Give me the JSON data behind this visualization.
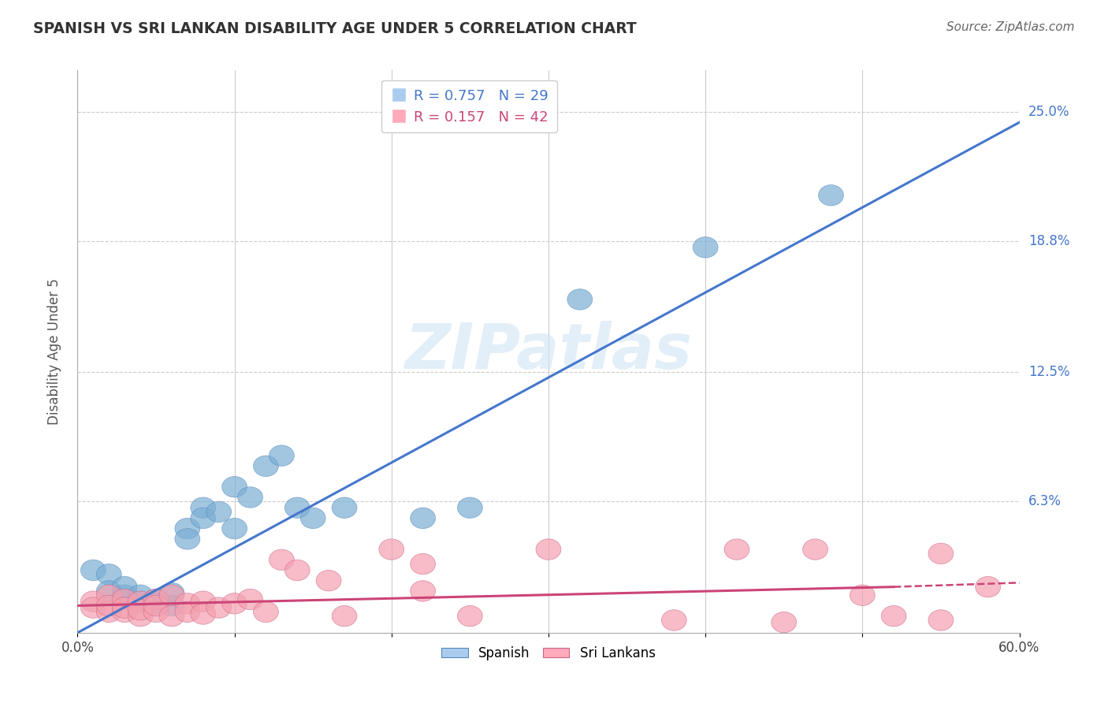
{
  "title": "SPANISH VS SRI LANKAN DISABILITY AGE UNDER 5 CORRELATION CHART",
  "source": "Source: ZipAtlas.com",
  "ylabel": "Disability Age Under 5",
  "xlim": [
    0.0,
    0.6
  ],
  "ylim": [
    0.0,
    0.27
  ],
  "xtick_vals": [
    0.0,
    0.1,
    0.2,
    0.3,
    0.4,
    0.5,
    0.6
  ],
  "xticklabels": [
    "0.0%",
    "",
    "",
    "",
    "",
    "",
    "60.0%"
  ],
  "ytick_vals": [
    0.0,
    0.063,
    0.125,
    0.188,
    0.25
  ],
  "ytick_labels": [
    "",
    "6.3%",
    "12.5%",
    "18.8%",
    "25.0%"
  ],
  "grid_color": "#cccccc",
  "watermark_text": "ZIPatlas",
  "spanish_color": "#7bafd4",
  "sri_lankan_color": "#f4a0b0",
  "spanish_line_color": "#4477cc",
  "sri_lankan_line_color": "#cc4477",
  "legend_R_spanish": "R = 0.757",
  "legend_N_spanish": "N = 29",
  "legend_R_sri": "R = 0.157",
  "legend_N_sri": "N = 42",
  "spanish_points": [
    [
      0.01,
      0.03
    ],
    [
      0.02,
      0.028
    ],
    [
      0.02,
      0.02
    ],
    [
      0.03,
      0.018
    ],
    [
      0.03,
      0.022
    ],
    [
      0.04,
      0.015
    ],
    [
      0.04,
      0.018
    ],
    [
      0.05,
      0.016
    ],
    [
      0.05,
      0.014
    ],
    [
      0.06,
      0.019
    ],
    [
      0.06,
      0.013
    ],
    [
      0.07,
      0.05
    ],
    [
      0.07,
      0.045
    ],
    [
      0.08,
      0.06
    ],
    [
      0.08,
      0.055
    ],
    [
      0.09,
      0.058
    ],
    [
      0.1,
      0.07
    ],
    [
      0.1,
      0.05
    ],
    [
      0.11,
      0.065
    ],
    [
      0.12,
      0.08
    ],
    [
      0.13,
      0.085
    ],
    [
      0.14,
      0.06
    ],
    [
      0.15,
      0.055
    ],
    [
      0.17,
      0.06
    ],
    [
      0.22,
      0.055
    ],
    [
      0.25,
      0.06
    ],
    [
      0.32,
      0.16
    ],
    [
      0.4,
      0.185
    ],
    [
      0.48,
      0.21
    ]
  ],
  "sri_lankan_points": [
    [
      0.01,
      0.015
    ],
    [
      0.01,
      0.012
    ],
    [
      0.02,
      0.018
    ],
    [
      0.02,
      0.01
    ],
    [
      0.02,
      0.013
    ],
    [
      0.03,
      0.016
    ],
    [
      0.03,
      0.01
    ],
    [
      0.03,
      0.012
    ],
    [
      0.04,
      0.015
    ],
    [
      0.04,
      0.008
    ],
    [
      0.04,
      0.011
    ],
    [
      0.05,
      0.016
    ],
    [
      0.05,
      0.01
    ],
    [
      0.05,
      0.013
    ],
    [
      0.06,
      0.018
    ],
    [
      0.06,
      0.008
    ],
    [
      0.07,
      0.014
    ],
    [
      0.07,
      0.01
    ],
    [
      0.08,
      0.015
    ],
    [
      0.08,
      0.009
    ],
    [
      0.09,
      0.012
    ],
    [
      0.1,
      0.014
    ],
    [
      0.11,
      0.016
    ],
    [
      0.12,
      0.01
    ],
    [
      0.13,
      0.035
    ],
    [
      0.14,
      0.03
    ],
    [
      0.16,
      0.025
    ],
    [
      0.17,
      0.008
    ],
    [
      0.2,
      0.04
    ],
    [
      0.22,
      0.033
    ],
    [
      0.22,
      0.02
    ],
    [
      0.25,
      0.008
    ],
    [
      0.3,
      0.04
    ],
    [
      0.38,
      0.006
    ],
    [
      0.42,
      0.04
    ],
    [
      0.45,
      0.005
    ],
    [
      0.47,
      0.04
    ],
    [
      0.5,
      0.018
    ],
    [
      0.52,
      0.008
    ],
    [
      0.55,
      0.006
    ],
    [
      0.55,
      0.038
    ],
    [
      0.58,
      0.022
    ]
  ],
  "spanish_line": [
    [
      0.0,
      0.0
    ],
    [
      0.6,
      0.245
    ]
  ],
  "sri_lankan_line_solid": [
    [
      0.0,
      0.013
    ],
    [
      0.52,
      0.022
    ]
  ],
  "sri_lankan_line_dashed": [
    [
      0.52,
      0.022
    ],
    [
      0.6,
      0.024
    ]
  ]
}
